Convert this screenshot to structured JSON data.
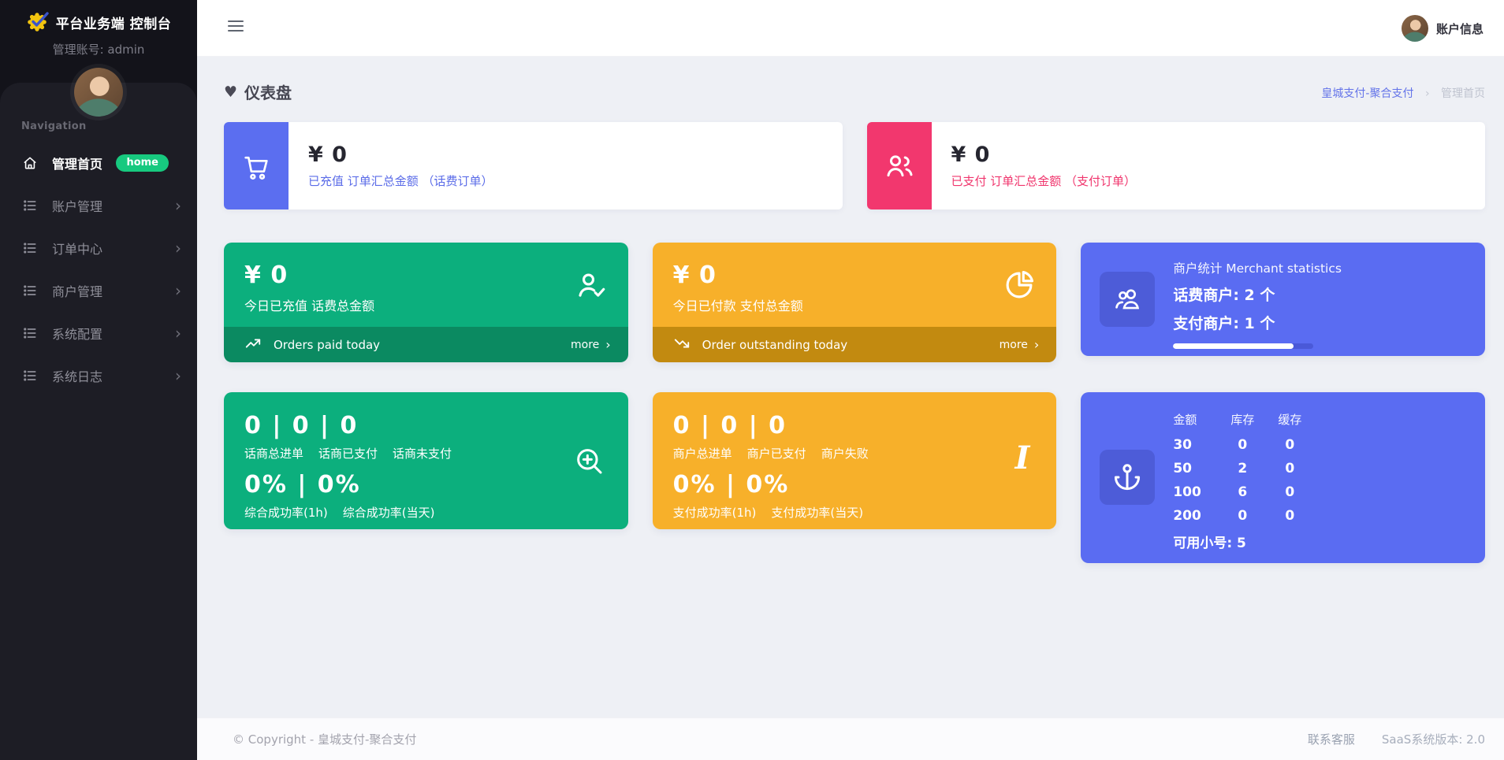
{
  "app": {
    "logo_title": "平台业务端 控制台",
    "admin_label": "管理账号: admin"
  },
  "sidebar": {
    "nav_label": "Navigation",
    "items": [
      {
        "label": "管理首页",
        "badge": "home",
        "active": true
      },
      {
        "label": "账户管理"
      },
      {
        "label": "订单中心"
      },
      {
        "label": "商户管理"
      },
      {
        "label": "系统配置"
      },
      {
        "label": "系统日志"
      }
    ]
  },
  "topbar": {
    "account_label": "账户信息"
  },
  "page": {
    "title": "仪表盘",
    "breadcrumb_root": "皇城支付-聚合支付",
    "breadcrumb_sep": "›",
    "breadcrumb_current": "管理首页"
  },
  "colors": {
    "indigo": "#5b6ef0",
    "pink": "#f2376e",
    "green": "#0caf7d",
    "green_dark": "#0b8a61",
    "yellow": "#f7b02a",
    "yellow_dark": "#c28a10",
    "blue": "#5a6cf2",
    "badge_green": "#17c97f"
  },
  "summary_cards": [
    {
      "amount": "¥ 0",
      "subtitle": "已充值 订单汇总金额 （话费订单）"
    },
    {
      "amount": "¥ 0",
      "subtitle": "已支付 订单汇总金额 （支付订单）"
    }
  ],
  "today_cards": [
    {
      "amount": "¥ 0",
      "subtitle": "今日已充值 话费总金额",
      "footer_label": "Orders paid today",
      "more_label": "more",
      "more_chevron": "›"
    },
    {
      "amount": "¥ 0",
      "subtitle": "今日已付款 支付总金额",
      "footer_label": "Order outstanding today",
      "more_label": "more",
      "more_chevron": "›"
    }
  ],
  "merchant_card": {
    "title": "商户统计 Merchant statistics",
    "line1": "话费商户: 2 个",
    "line2": "支付商户: 1 个",
    "progress_percent": 86
  },
  "metric_cards": [
    {
      "numbers": "0 | 0 | 0",
      "labels": [
        "话商总进单",
        "话商已支付",
        "话商未支付"
      ],
      "percents": "0% | 0%",
      "percent_labels": [
        "综合成功率(1h)",
        "综合成功率(当天)"
      ]
    },
    {
      "numbers": "0 | 0 | 0",
      "labels": [
        "商户总进单",
        "商户已支付",
        "商户失败"
      ],
      "percents": "0% | 0%",
      "percent_labels": [
        "支付成功率(1h)",
        "支付成功率(当天)"
      ]
    }
  ],
  "inventory_card": {
    "headers": [
      "金额",
      "库存",
      "缓存"
    ],
    "rows": [
      [
        "30",
        "0",
        "0"
      ],
      [
        "50",
        "2",
        "0"
      ],
      [
        "100",
        "6",
        "0"
      ],
      [
        "200",
        "0",
        "0"
      ]
    ],
    "available_label": "可用小号: 5"
  },
  "footer": {
    "copyright": "© Copyright - 皇城支付-聚合支付",
    "contact": "联系客服",
    "version": "SaaS系统版本: 2.0"
  }
}
